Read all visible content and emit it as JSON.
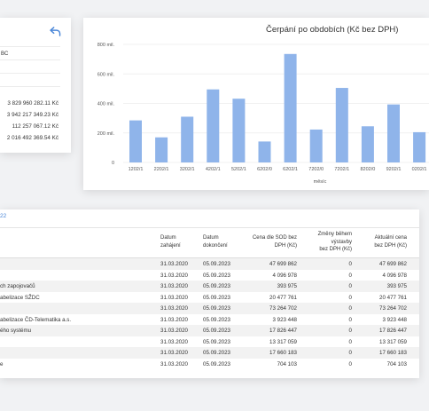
{
  "left_card": {
    "row_label": "BC",
    "values": [
      "3 829 960 282.11 Kč",
      "3 942 217 349.23 Kč",
      "112 257 067.12 Kč",
      "2 016 492 369.54 Kč"
    ]
  },
  "colors": {
    "bar": "#8fb4ea",
    "accent": "#4a86d8",
    "row_shade": "#f2f2f2"
  },
  "chart_data": {
    "type": "bar",
    "title": "Čerpání po obdobích (Kč bez DPH)",
    "xlabel": "měsíc",
    "ylabel": "",
    "y_ticks": [
      "0",
      "200 mil.",
      "400 mil.",
      "600 mil.",
      "800 mil."
    ],
    "ylim": [
      0,
      800
    ],
    "categories": [
      "1202/1",
      "2202/1",
      "3202/1",
      "4202/1",
      "5202/1",
      "6202/0",
      "6202/1",
      "7202/0",
      "7202/1",
      "8202/0",
      "9202/1",
      "0202/1"
    ],
    "values": [
      285,
      170,
      310,
      495,
      432,
      142,
      735,
      223,
      505,
      245,
      393,
      205
    ],
    "grid": true,
    "legend": "none"
  },
  "table": {
    "heading": "22",
    "headers": {
      "start": [
        "Datum",
        "zahájení"
      ],
      "end": [
        "Datum",
        "dokončení"
      ],
      "cena": [
        "Cena dle SOD bez",
        "DPH (Kč)"
      ],
      "zmeny": [
        "Změny během",
        "výstavby",
        "bez DPH (Kč)"
      ],
      "akt": [
        "Aktuální cena",
        "bez DPH (Kč)"
      ]
    },
    "rows": [
      {
        "name": "",
        "start": "31.03.2020",
        "end": "05.09.2023",
        "cena": "47 699 862",
        "zmeny": "0",
        "akt": "47 699 862"
      },
      {
        "name": "",
        "start": "31.03.2020",
        "end": "05.09.2023",
        "cena": "4 096 978",
        "zmeny": "0",
        "akt": "4 096 978"
      },
      {
        "name": "ch zapojovačů",
        "start": "31.03.2020",
        "end": "05.09.2023",
        "cena": "393 975",
        "zmeny": "0",
        "akt": "393 975"
      },
      {
        "name": "abelizace SŽDC",
        "start": "31.03.2020",
        "end": "05.09.2023",
        "cena": "20 477 761",
        "zmeny": "0",
        "akt": "20 477 761"
      },
      {
        "name": "",
        "start": "31.03.2020",
        "end": "05.09.2023",
        "cena": "73 264 702",
        "zmeny": "0",
        "akt": "73 264 702"
      },
      {
        "name": "abelizace ČD-Telematika a.s.",
        "start": "31.03.2020",
        "end": "05.09.2023",
        "cena": "3 923 448",
        "zmeny": "0",
        "akt": "3 923 448"
      },
      {
        "name": "ého systému",
        "start": "31.03.2020",
        "end": "05.09.2023",
        "cena": "17 826 447",
        "zmeny": "0",
        "akt": "17 826 447"
      },
      {
        "name": "",
        "start": "31.03.2020",
        "end": "05.09.2023",
        "cena": "13 317 059",
        "zmeny": "0",
        "akt": "13 317 059"
      },
      {
        "name": "",
        "start": "31.03.2020",
        "end": "05.09.2023",
        "cena": "17 660 183",
        "zmeny": "0",
        "akt": "17 660 183"
      },
      {
        "name": "e",
        "start": "31.03.2020",
        "end": "05.09.2023",
        "cena": "704 103",
        "zmeny": "0",
        "akt": "704 103"
      }
    ]
  }
}
